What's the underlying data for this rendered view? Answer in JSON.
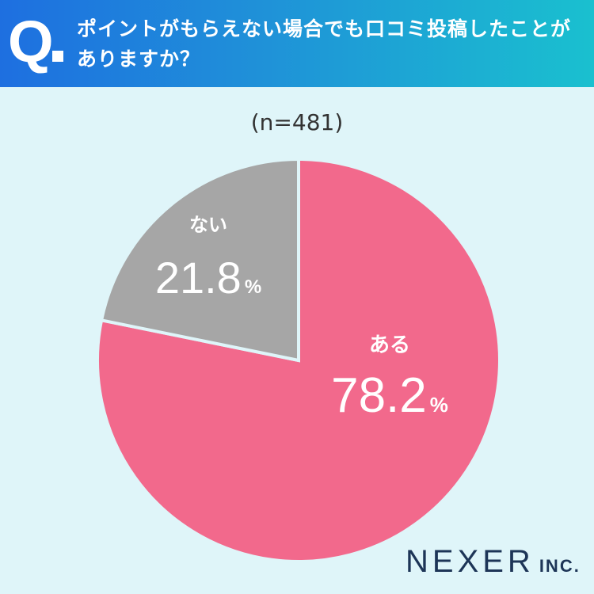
{
  "header": {
    "q_label": "Q",
    "question_line1": "ポイントがもらえない場合でも口コミ投稿したことが",
    "question_line2": "ありますか？"
  },
  "chart_data": {
    "type": "pie",
    "title": "",
    "note": "(n=481)",
    "slices": [
      {
        "label": "ある",
        "value": 78.2,
        "display": "78.2",
        "unit": "%",
        "color": "#f2698c"
      },
      {
        "label": "ない",
        "value": 21.8,
        "display": "21.8",
        "unit": "%",
        "color": "#a6a6a6"
      }
    ]
  },
  "footer": {
    "logo_main": "NEXER",
    "logo_sub": "INC."
  },
  "colors": {
    "background": "#dff5f9",
    "slice_border": "#dff5f9",
    "label_text": "#ffffff"
  }
}
